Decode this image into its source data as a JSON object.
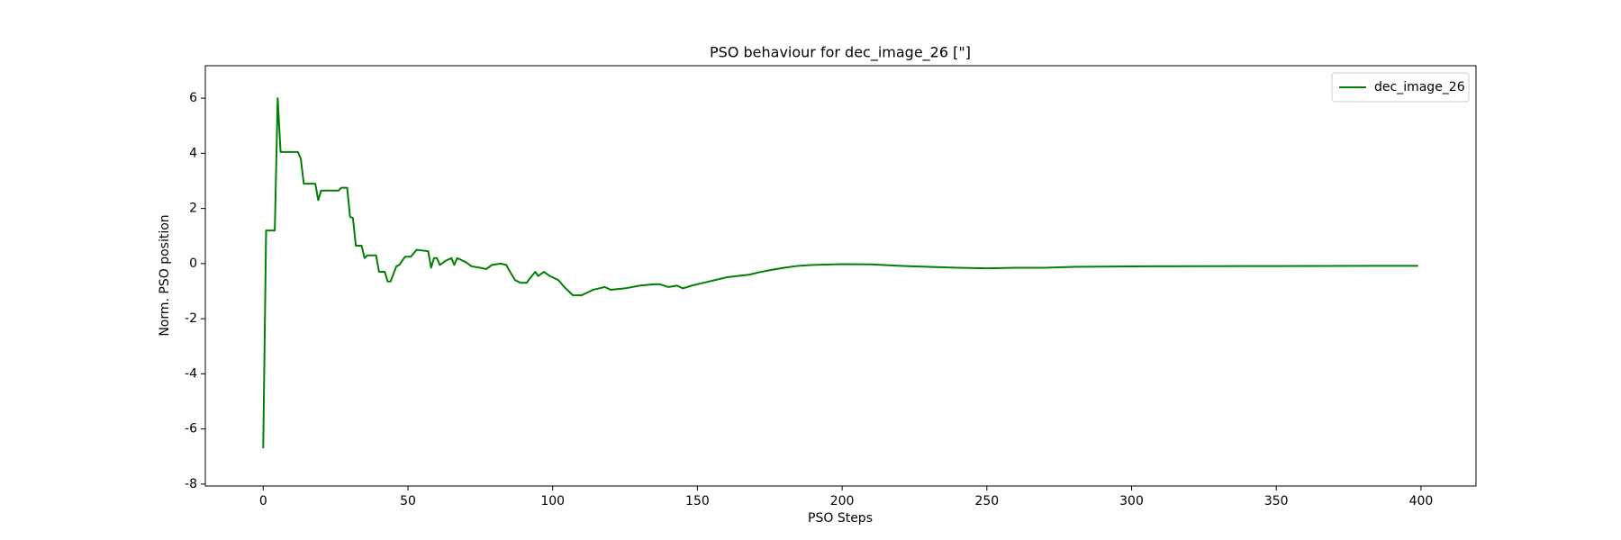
{
  "chart_data": {
    "type": "line",
    "title": "PSO behaviour for dec_image_26 [\"]",
    "x_label": "PSO Steps",
    "y_label": "Norm. PSO position",
    "xlim": [
      -20,
      419
    ],
    "ylim": [
      -8.07,
      7.18
    ],
    "xticks": [
      0,
      50,
      100,
      150,
      200,
      250,
      300,
      350,
      400
    ],
    "yticks": [
      -8,
      -6,
      -4,
      -2,
      0,
      2,
      4,
      6
    ],
    "legend": "upper right",
    "x": [
      0,
      1,
      3,
      4,
      5,
      6,
      12,
      13,
      14,
      18,
      19,
      20,
      26,
      27,
      29,
      30,
      31,
      32,
      34,
      35,
      36,
      39,
      40,
      42,
      43,
      44,
      46,
      47,
      49,
      51,
      53,
      57,
      58,
      59,
      60,
      61,
      63,
      65,
      66,
      67,
      70,
      72,
      75,
      77,
      79,
      82,
      84,
      85,
      87,
      89,
      91,
      92,
      94,
      95,
      97,
      99,
      102,
      104,
      107,
      110,
      112,
      114,
      116,
      118,
      120,
      125,
      130,
      135,
      137,
      140,
      143,
      145,
      148,
      152,
      156,
      160,
      164,
      168,
      172,
      176,
      180,
      185,
      190,
      200,
      210,
      220,
      230,
      240,
      250,
      260,
      270,
      280,
      300,
      350,
      399
    ],
    "series": [
      {
        "name": "dec_image_26",
        "color": "#008000",
        "values": [
          -6.7,
          1.2,
          1.2,
          1.2,
          6.0,
          4.05,
          4.05,
          3.8,
          2.9,
          2.9,
          2.3,
          2.65,
          2.65,
          2.75,
          2.75,
          1.7,
          1.65,
          0.65,
          0.65,
          0.2,
          0.3,
          0.3,
          -0.3,
          -0.3,
          -0.65,
          -0.65,
          -0.1,
          -0.05,
          0.25,
          0.25,
          0.5,
          0.45,
          -0.15,
          0.2,
          0.2,
          -0.05,
          0.1,
          0.2,
          -0.05,
          0.2,
          0.05,
          -0.1,
          -0.15,
          -0.2,
          -0.05,
          0,
          -0.05,
          -0.25,
          -0.6,
          -0.7,
          -0.7,
          -0.55,
          -0.3,
          -0.45,
          -0.3,
          -0.45,
          -0.6,
          -0.85,
          -1.15,
          -1.15,
          -1.05,
          -0.95,
          -0.9,
          -0.85,
          -0.95,
          -0.9,
          -0.8,
          -0.75,
          -0.75,
          -0.85,
          -0.8,
          -0.9,
          -0.8,
          -0.7,
          -0.6,
          -0.5,
          -0.45,
          -0.4,
          -0.3,
          -0.22,
          -0.15,
          -0.08,
          -0.05,
          -0.02,
          -0.03,
          -0.08,
          -0.12,
          -0.15,
          -0.17,
          -0.15,
          -0.15,
          -0.12,
          -0.1,
          -0.09,
          -0.08
        ]
      }
    ]
  }
}
